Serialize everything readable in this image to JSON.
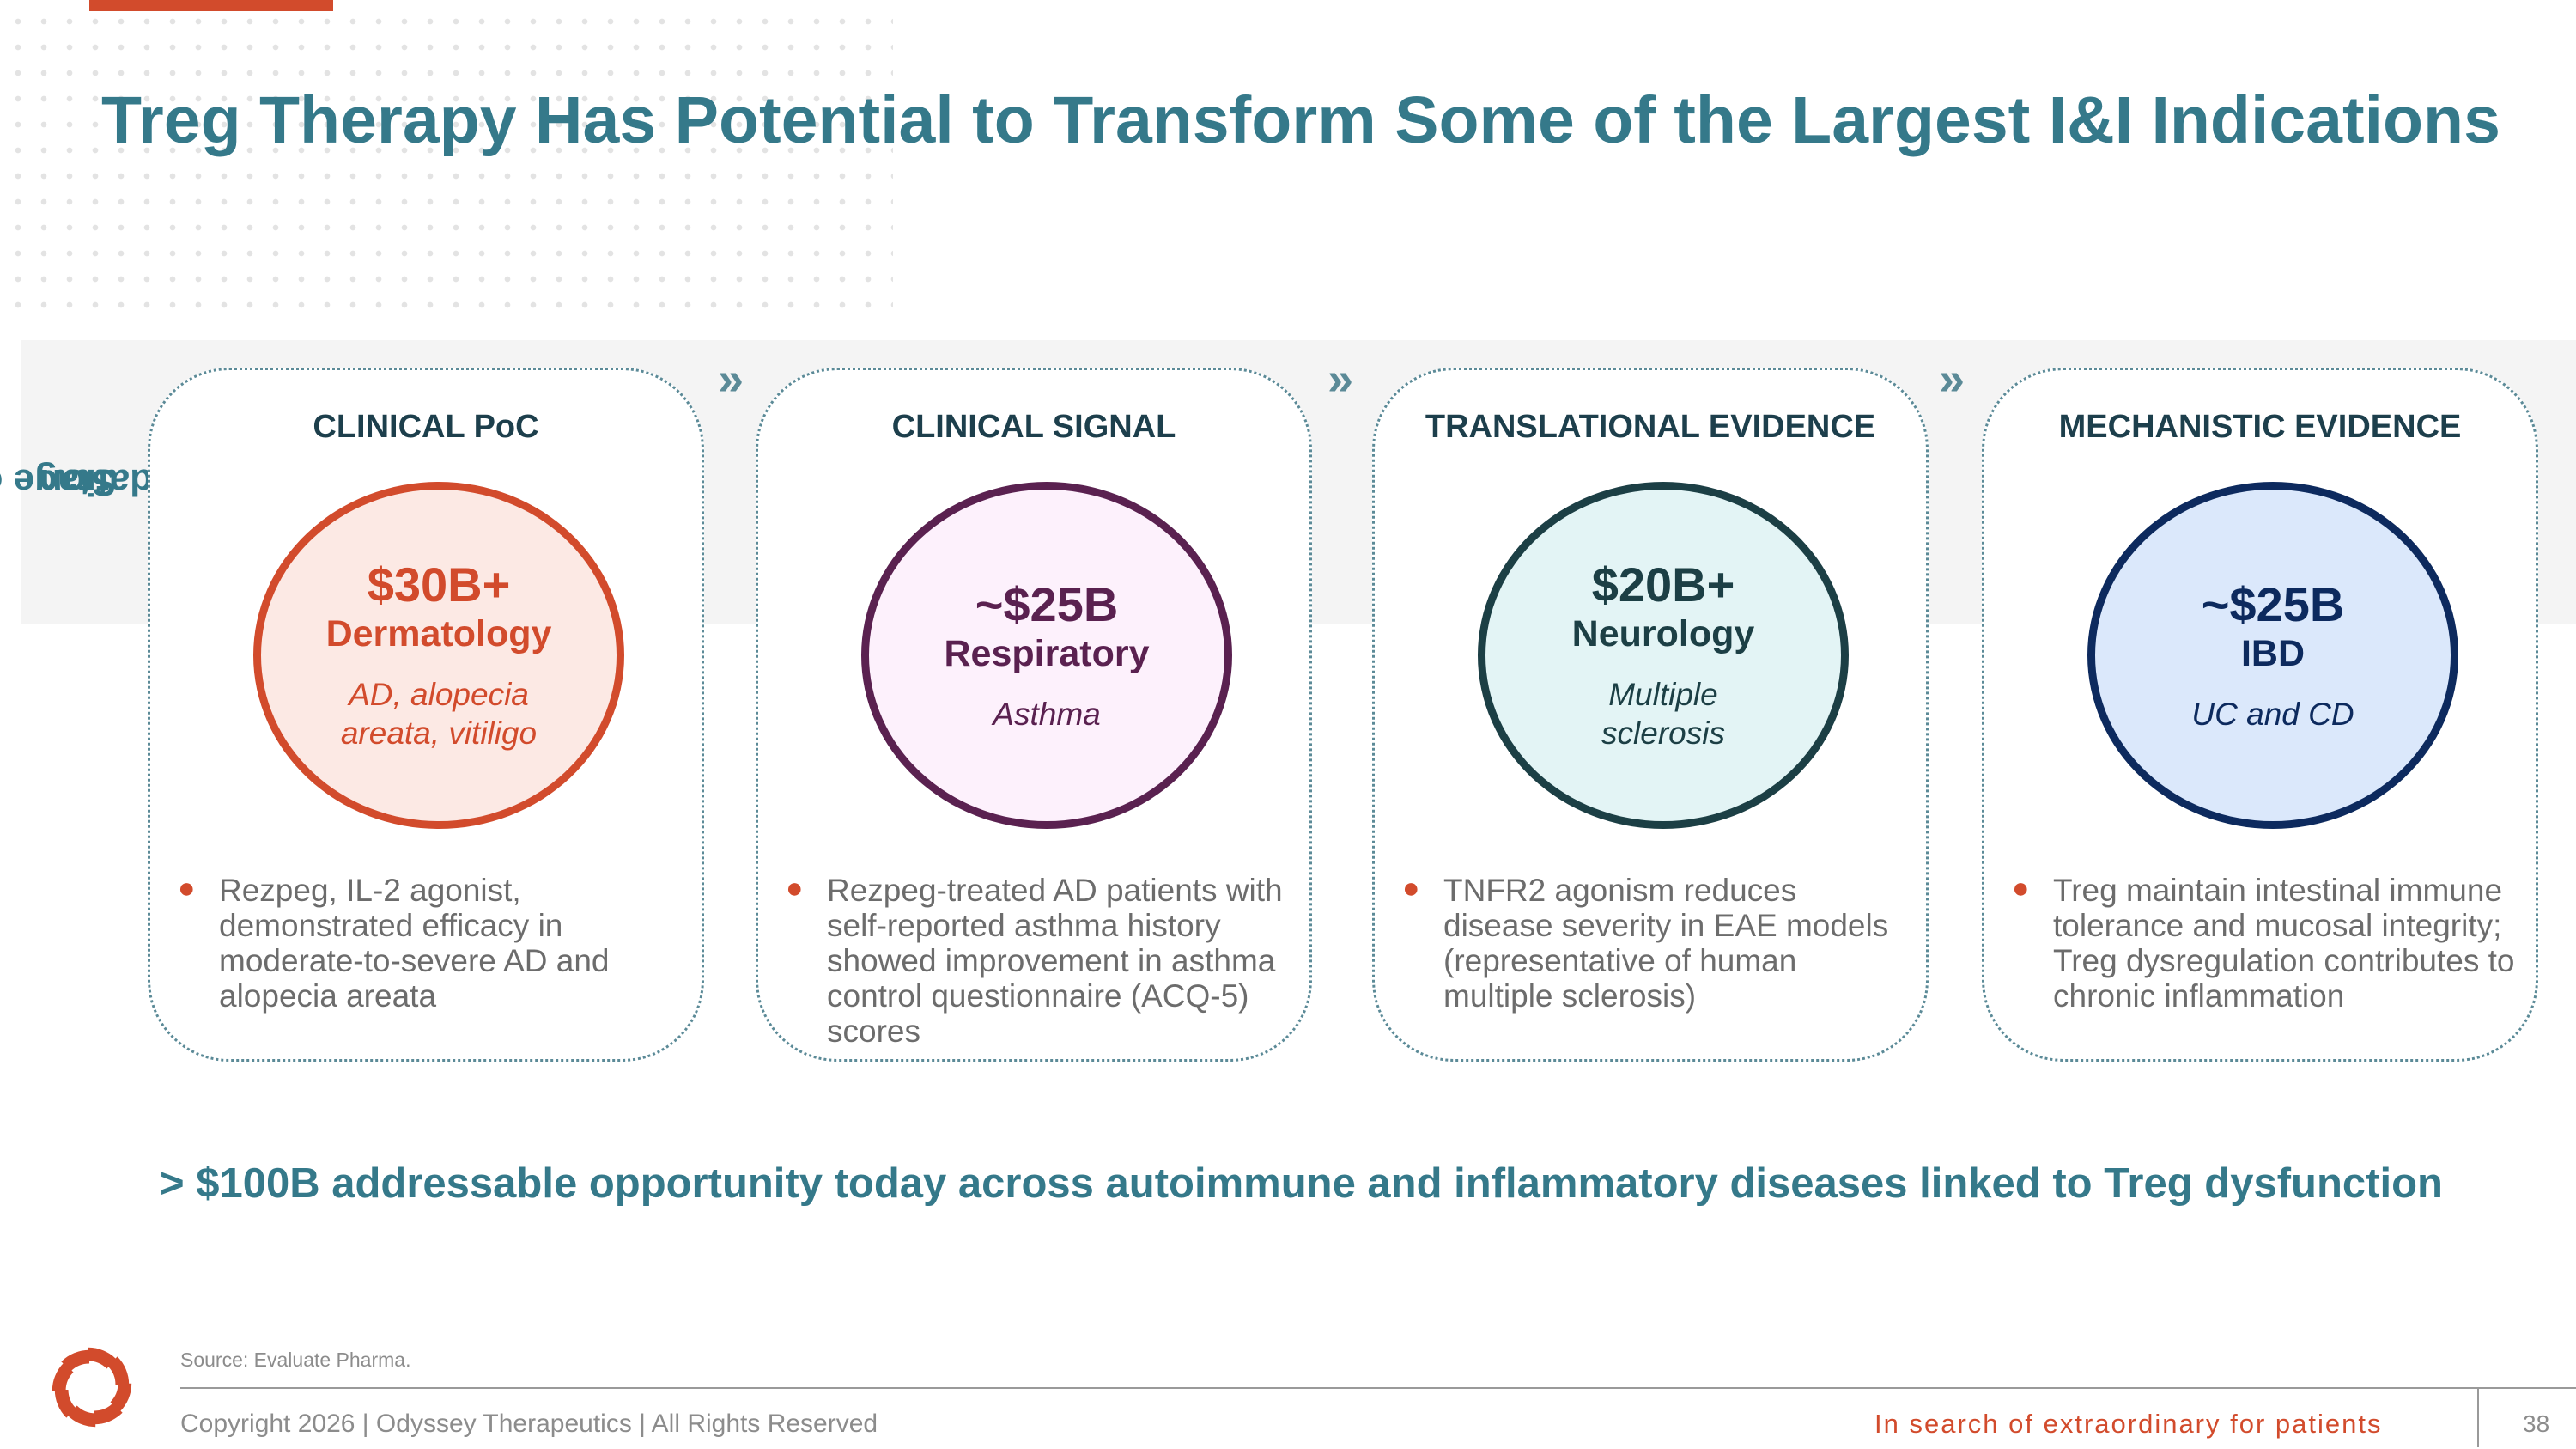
{
  "slide": {
    "title": "Treg Therapy Has Potential to Transform Some of the Largest I&I Indications",
    "stage_label_line1": "Stage of",
    "stage_label_line2": "validation",
    "chevron": "»"
  },
  "colors": {
    "accent_teal": "#35798a",
    "accent_orange": "#d24b2c"
  },
  "cards": [
    {
      "heading": "CLINICAL PoC",
      "value": "$30B+",
      "area": "Dermatology",
      "sub_line1": "AD, alopecia",
      "sub_line2": "areata, vitiligo",
      "bullet": "Rezpeg, IL-2 agonist, demonstrated efficacy in moderate-to-severe AD and alopecia areata",
      "border_color": "#d24b2c",
      "fill_color": "#fce9e4",
      "text_color": "#d24b2c"
    },
    {
      "heading": "CLINICAL SIGNAL",
      "value": "~$25B",
      "area": "Respiratory",
      "sub_line1": "Asthma",
      "sub_line2": "",
      "bullet": "Rezpeg-treated AD patients with self-reported asthma history showed improvement in asthma control questionnaire (ACQ-5) scores",
      "border_color": "#5a2150",
      "fill_color": "#fdf1fc",
      "text_color": "#5a2150"
    },
    {
      "heading": "TRANSLATIONAL EVIDENCE",
      "value": "$20B+",
      "area": "Neurology",
      "sub_line1": "Multiple",
      "sub_line2": "sclerosis",
      "bullet": "TNFR2 agonism reduces disease severity in EAE models (representative of human multiple sclerosis)",
      "border_color": "#1c3f45",
      "fill_color": "#e3f4f5",
      "text_color": "#1c3f45"
    },
    {
      "heading": "MECHANISTIC EVIDENCE",
      "value": "~$25B",
      "area": "IBD",
      "sub_line1": "UC and CD",
      "sub_line2": "",
      "bullet": "Treg maintain intestinal immune tolerance and mucosal integrity; Treg dysregulation contributes to chronic inflammation",
      "border_color": "#0d2a5e",
      "fill_color": "#dbe8fb",
      "text_color": "#0d2a5e"
    }
  ],
  "tagline": "> $100B addressable opportunity today across autoimmune and inflammatory diseases linked to Treg dysfunction",
  "footer": {
    "source": "Source: Evaluate Pharma.",
    "copyright": "Copyright 2026  |  Odyssey Therapeutics  |  All Rights Reserved",
    "slogan": "In search of extraordinary for patients",
    "page_number": "38"
  }
}
